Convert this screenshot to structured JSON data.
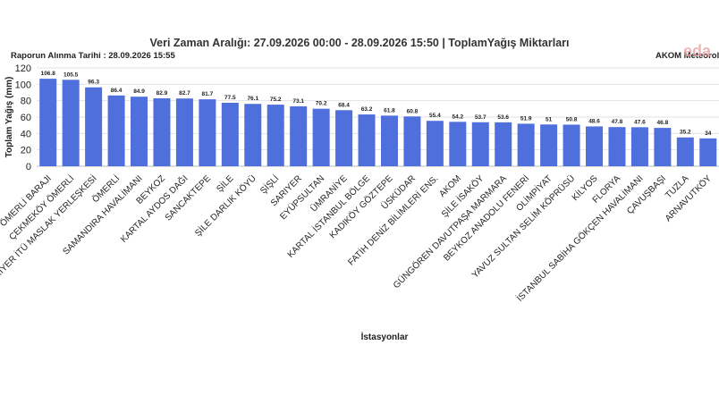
{
  "header": {
    "title": "Veri Zaman Aralığı: 27.09.2026 00:00 - 28.09.2026 15:50 | ToplamYağış Miktarları",
    "report_date": "Raporun Alınma Tarihi : 28.09.2026 15:55",
    "source": "AKOM Meteoroloji",
    "watermark": "eda"
  },
  "chart_data": {
    "type": "bar",
    "title": "Veri Zaman Aralığı: 27.09.2026 00:00 - 28.09.2026 15:50 | ToplamYağış Miktarları",
    "xlabel": "İstasyonlar",
    "ylabel": "Toplam Yağış (mm)",
    "ylim": [
      0,
      120
    ],
    "yticks": [
      0,
      20,
      40,
      60,
      80,
      100,
      120
    ],
    "grid": true,
    "bar_color": "#4f6fdc",
    "categories": [
      "ÖMERLİ BARAJI",
      "ÇEKMEKÖY ÖMERLİ",
      "SARIYER İTÜ MASLAK YERLEŞKESİ",
      "ÖMERLİ",
      "SAMANDIRA HAVALİMANI",
      "BEYKOZ",
      "KARTAL AYDOS DAĞI",
      "SANCAKTEPE",
      "ŞİLE",
      "ŞİLE DARLIK KÖYÜ",
      "ŞİŞLİ",
      "SARIYER",
      "EYÜPSULTAN",
      "ÜMRANİYE",
      "KARTAL İSTANBUL BÖLGE",
      "KADIKÖY GÖZTEPE",
      "ÜSKÜDAR",
      "FATİH DENİZ BİLİMLERİ ENS.",
      "AKOM",
      "ŞİLE İSAKÖY",
      "GÜNGÖREN DAVUTPAŞA MARMARA",
      "BEYKOZ ANADOLU FENERİ",
      "OLİMPİYAT",
      "YAVUZ SULTAN SELİM KÖPRÜSÜ",
      "KİLYOS",
      "FLORYA",
      "İSTANBUL SABİHA GÖKÇEN HAVALİMANI",
      "ÇAVUŞBAŞI",
      "TUZLA",
      "ARNAVUTKÖY"
    ],
    "values": [
      106.8,
      105.5,
      96.3,
      86.4,
      84.9,
      82.9,
      82.7,
      81.7,
      77.5,
      76.1,
      75.2,
      73.1,
      70.2,
      68.4,
      63.2,
      61.8,
      60.8,
      55.4,
      54.2,
      53.7,
      53.6,
      51.9,
      51,
      50.8,
      48.6,
      47.8,
      47.6,
      46.8,
      35.2,
      34
    ]
  }
}
